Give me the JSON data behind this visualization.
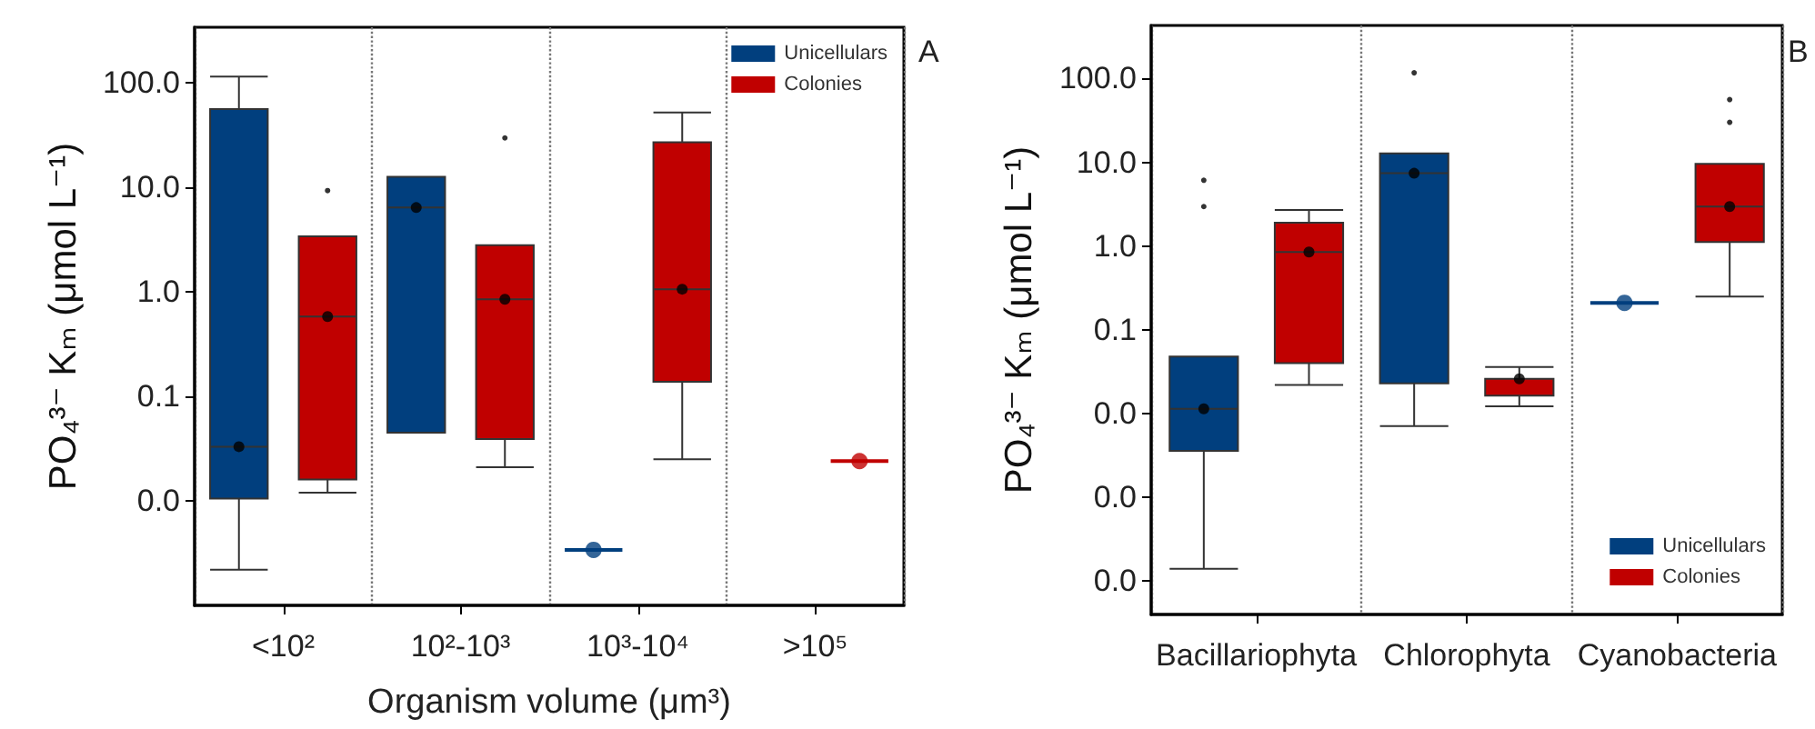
{
  "chart_data": [
    {
      "type": "box",
      "xlabel": "Organism volume (μm³)",
      "ylabel": "PO₄³⁻ Kₘ (μmol L⁻¹)",
      "annotations": [
        "A"
      ],
      "categories": [
        "<10²",
        "10²-10³",
        "10³-10⁴",
        ">10⁵"
      ],
      "log": "y",
      "ylim": [
        0.001,
        340
      ],
      "yticks": [
        {
          "value": 0.01,
          "label": "0.0"
        },
        0.1,
        {
          "value": 1,
          "label": "1.0"
        },
        {
          "value": 10,
          "label": "10.0"
        },
        {
          "value": 100,
          "label": "100.0"
        }
      ],
      "grid": "x",
      "legend": "top right",
      "series": [
        {
          "name": "Unicellulars",
          "color": "#013f7e",
          "boxes": [
            {
              "low": 0.0022,
              "q1": 0.0105,
              "median": 0.033,
              "q3": 56,
              "high": 115,
              "mean": 0.033
            },
            {
              "low": 0.045,
              "q1": 0.045,
              "median": 6.4,
              "q3": 12.6,
              "high": 12.6,
              "mean": 6.4
            },
            {
              "low": 0.0034,
              "q1": 0.0034,
              "median": 0.0034,
              "q3": 0.0034,
              "high": 0.0034,
              "mean": 0.0034
            },
            null
          ]
        },
        {
          "name": "Colonies",
          "color": "#c00000",
          "boxes": [
            {
              "low": 0.012,
              "q1": 0.016,
              "median": 0.58,
              "q3": 3.4,
              "high": 3.4,
              "mean": 0.58,
              "outliers": [
                9.3
              ]
            },
            {
              "low": 0.021,
              "q1": 0.039,
              "median": 0.85,
              "q3": 2.8,
              "high": 2.8,
              "mean": 0.85,
              "outliers": [
                29.7
              ]
            },
            {
              "low": 0.025,
              "q1": 0.138,
              "median": 1.06,
              "q3": 27,
              "high": 52,
              "mean": 1.06
            },
            {
              "low": 0.024,
              "q1": 0.024,
              "median": 0.024,
              "q3": 0.024,
              "high": 0.024,
              "mean": 0.024
            }
          ]
        }
      ]
    },
    {
      "type": "box",
      "ylabel": "PO₄³⁻ Kₘ (μmol L⁻¹)",
      "annotations": [
        "B"
      ],
      "categories": [
        "Bacillariophyta",
        "Chlorophyta",
        "Cyanobacteria"
      ],
      "log": "y",
      "ylim": [
        4e-05,
        430
      ],
      "yticks": [
        {
          "value": 0.0001,
          "label": "0.0"
        },
        {
          "value": 0.001,
          "label": "0.0"
        },
        {
          "value": 0.01,
          "label": "0.0"
        },
        0.1,
        {
          "value": 1,
          "label": "1.0"
        },
        {
          "value": 10,
          "label": "10.0"
        },
        {
          "value": 100,
          "label": "100.0"
        }
      ],
      "grid": "x",
      "legend": "bottom right",
      "series": [
        {
          "name": "Unicellulars",
          "color": "#013f7e",
          "boxes": [
            {
              "low": 0.00014,
              "q1": 0.0036,
              "median": 0.0114,
              "q3": 0.048,
              "high": 0.048,
              "mean": 0.0114,
              "outliers": [
                2.96,
                6.1
              ]
            },
            {
              "low": 0.0071,
              "q1": 0.023,
              "median": 7.4,
              "q3": 12.8,
              "high": 12.8,
              "mean": 7.4,
              "outliers": [
                117
              ]
            },
            {
              "low": 0.21,
              "q1": 0.21,
              "median": 0.21,
              "q3": 0.21,
              "high": 0.21,
              "mean": 0.21
            }
          ]
        },
        {
          "name": "Colonies",
          "color": "#c00000",
          "boxes": [
            {
              "low": 0.022,
              "q1": 0.04,
              "median": 0.85,
              "q3": 1.9,
              "high": 2.7,
              "mean": 0.85
            },
            {
              "low": 0.0122,
              "q1": 0.0164,
              "median": 0.026,
              "q3": 0.026,
              "high": 0.036,
              "mean": 0.026
            },
            {
              "low": 0.25,
              "q1": 1.12,
              "median": 2.96,
              "q3": 9.6,
              "high": 9.6,
              "mean": 2.96,
              "outliers": [
                30,
                56
              ]
            }
          ]
        }
      ]
    }
  ]
}
